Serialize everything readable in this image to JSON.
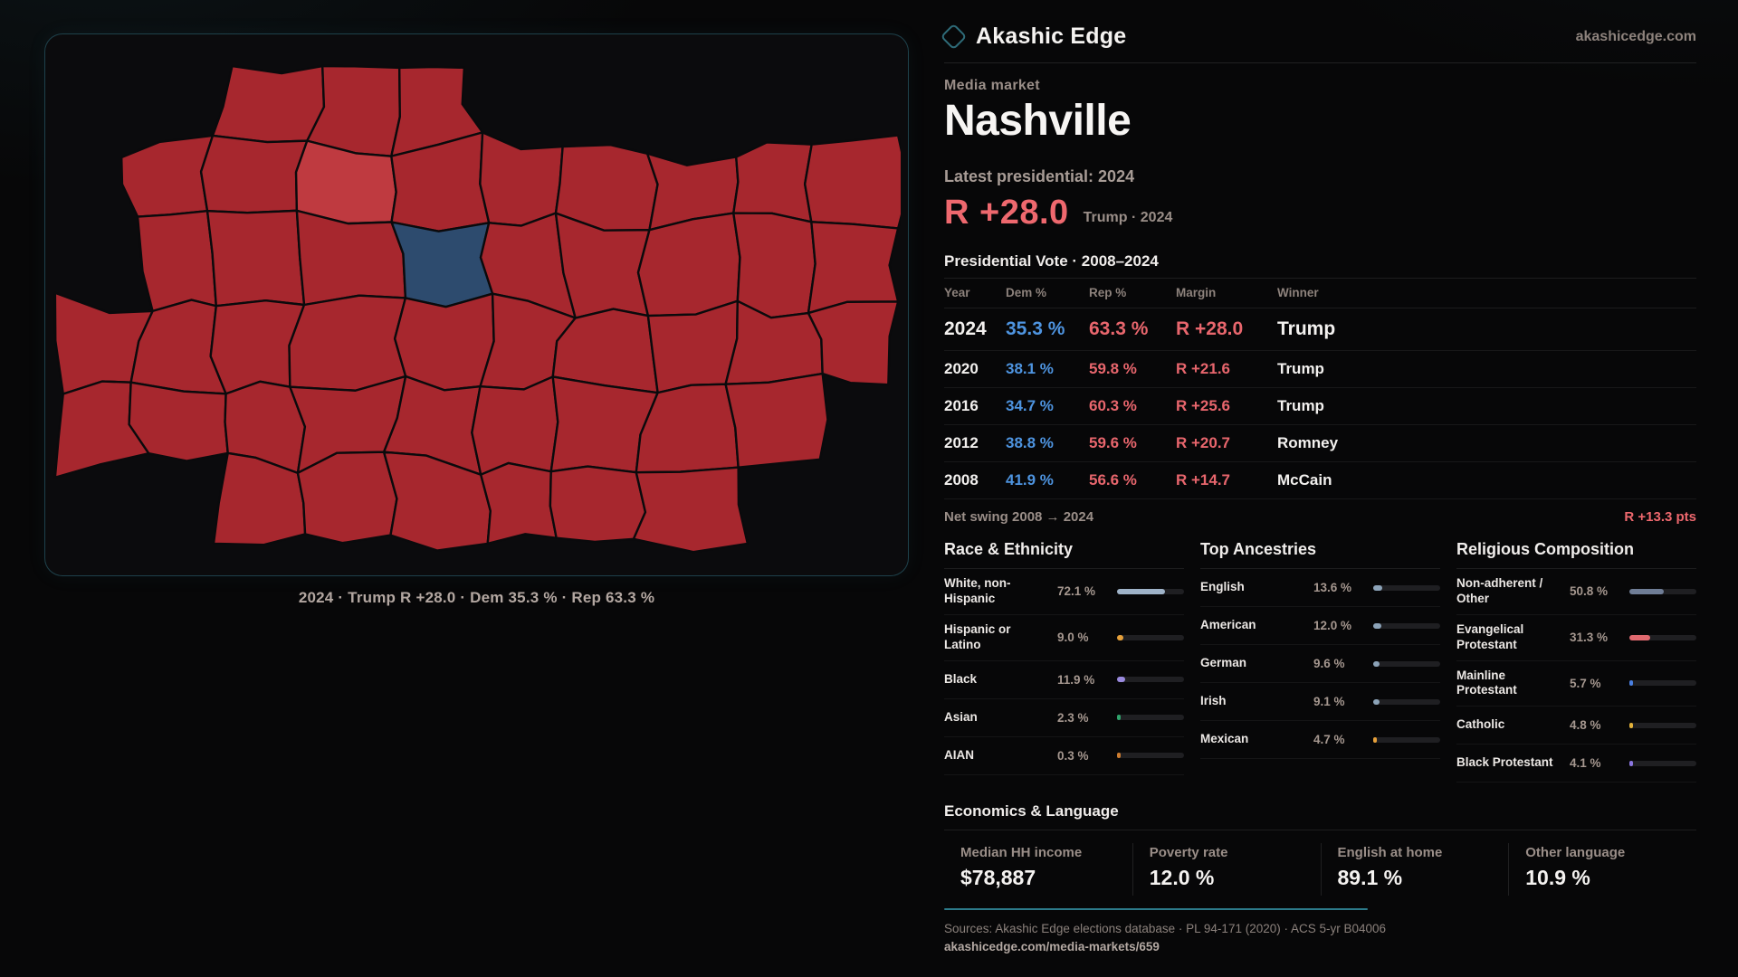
{
  "header": {
    "brand": "Akashic Edge",
    "domain": "akashicedge.com"
  },
  "market": {
    "eyebrow": "Media market",
    "name": "Nashville",
    "latest_label": "Latest presidential: 2024",
    "headline_margin": "R +28.0",
    "headline_note": "Trump · 2024"
  },
  "vote_table": {
    "title": "Presidential Vote · 2008–2024",
    "columns": [
      "Year",
      "Dem %",
      "Rep %",
      "Margin",
      "Winner"
    ],
    "rows": [
      {
        "year": "2024",
        "dem": "35.3 %",
        "rep": "63.3 %",
        "margin": "R +28.0",
        "winner": "Trump",
        "emphasis": true
      },
      {
        "year": "2020",
        "dem": "38.1 %",
        "rep": "59.8 %",
        "margin": "R +21.6",
        "winner": "Trump",
        "emphasis": false
      },
      {
        "year": "2016",
        "dem": "34.7 %",
        "rep": "60.3 %",
        "margin": "R +25.6",
        "winner": "Trump",
        "emphasis": false
      },
      {
        "year": "2012",
        "dem": "38.8 %",
        "rep": "59.6 %",
        "margin": "R +20.7",
        "winner": "Romney",
        "emphasis": false
      },
      {
        "year": "2008",
        "dem": "41.9 %",
        "rep": "56.6 %",
        "margin": "R +14.7",
        "winner": "McCain",
        "emphasis": false
      }
    ],
    "net_swing_label": "Net swing 2008 → 2024",
    "net_swing_value": "R +13.3 pts"
  },
  "demographics": [
    {
      "title": "Race & Ethnicity",
      "rows": [
        {
          "label": "White, non-Hispanic",
          "value": "72.1 %",
          "pct": 72.1,
          "color": "#9fb3c8"
        },
        {
          "label": "Hispanic or Latino",
          "value": "9.0 %",
          "pct": 9.0,
          "color": "#e6a03a"
        },
        {
          "label": "Black",
          "value": "11.9 %",
          "pct": 11.9,
          "color": "#9a8ade"
        },
        {
          "label": "Asian",
          "value": "2.3 %",
          "pct": 2.3,
          "color": "#2fa36b"
        },
        {
          "label": "AIAN",
          "value": "0.3 %",
          "pct": 0.3,
          "color": "#cd7c2f"
        }
      ]
    },
    {
      "title": "Top Ancestries",
      "rows": [
        {
          "label": "English",
          "value": "13.6 %",
          "pct": 13.6,
          "color": "#8ca3b8"
        },
        {
          "label": "American",
          "value": "12.0 %",
          "pct": 12.0,
          "color": "#8ca3b8"
        },
        {
          "label": "German",
          "value": "9.6 %",
          "pct": 9.6,
          "color": "#8ca3b8"
        },
        {
          "label": "Irish",
          "value": "9.1 %",
          "pct": 9.1,
          "color": "#8ca3b8"
        },
        {
          "label": "Mexican",
          "value": "4.7 %",
          "pct": 4.7,
          "color": "#e6a03a"
        }
      ]
    },
    {
      "title": "Religious Composition",
      "rows": [
        {
          "label": "Non-adherent / Other",
          "value": "50.8 %",
          "pct": 50.8,
          "color": "#6f7d96"
        },
        {
          "label": "Evangelical Protestant",
          "value": "31.3 %",
          "pct": 31.3,
          "color": "#e0696f"
        },
        {
          "label": "Mainline Protestant",
          "value": "5.7 %",
          "pct": 5.7,
          "color": "#4a7fe0"
        },
        {
          "label": "Catholic",
          "value": "4.8 %",
          "pct": 4.8,
          "color": "#e3b23a"
        },
        {
          "label": "Black Protestant",
          "value": "4.1 %",
          "pct": 4.1,
          "color": "#8b76e0"
        }
      ]
    }
  ],
  "economics": {
    "title": "Economics & Language",
    "stats": [
      {
        "label": "Median HH income",
        "value": "$78,887"
      },
      {
        "label": "Poverty rate",
        "value": "12.0 %"
      },
      {
        "label": "English at home",
        "value": "89.1 %"
      },
      {
        "label": "Other language",
        "value": "10.9 %"
      }
    ]
  },
  "footer": {
    "sources": "Sources: Akashic Edge elections database · PL 94-171 (2020) · ACS 5-yr B04006",
    "permalink": "akashicedge.com/media-markets/659"
  },
  "map": {
    "caption": "2024 · Trump R +28.0 · Dem 35.3 % · Rep 63.3 %",
    "colors": {
      "county_red": "#a7272e",
      "county_light_red": "#bf3a40",
      "county_highlight_blue": "#2d4b6e",
      "county_border": "#0a0a0c"
    },
    "highlight_cell": "2,4",
    "light_cell": "1,3"
  },
  "colors": {
    "accent_red": "#ee686e",
    "dem_blue": "#4e94e0",
    "rep_red": "#e8666d",
    "teal_accent": "#2c7a8a"
  }
}
